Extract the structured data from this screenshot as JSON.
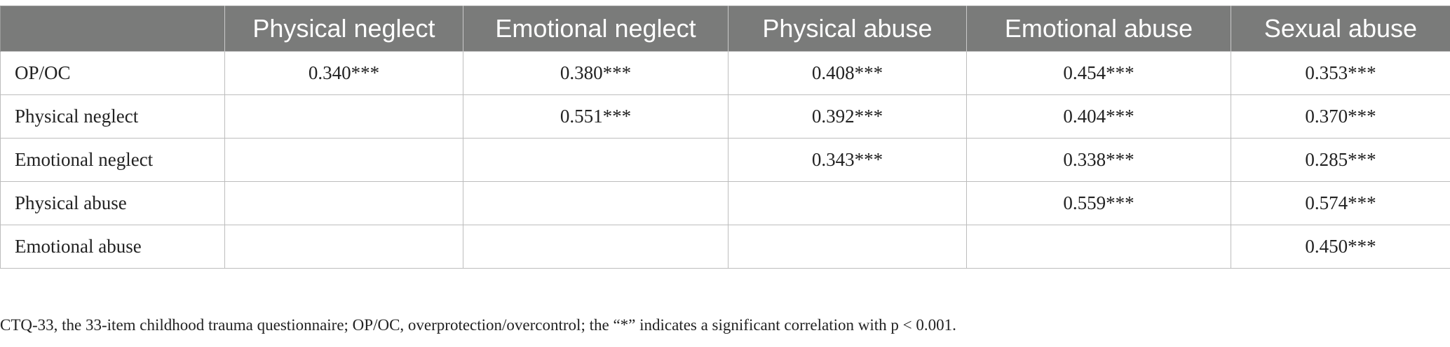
{
  "table": {
    "headers": [
      "",
      "Physical neglect",
      "Emotional neglect",
      "Physical abuse",
      "Emotional abuse",
      "Sexual abuse"
    ],
    "rows": [
      {
        "label": "OP/OC",
        "cells": [
          "0.340***",
          "0.380***",
          "0.408***",
          "0.454***",
          "0.353***"
        ]
      },
      {
        "label": "Physical neglect",
        "cells": [
          "",
          "0.551***",
          "0.392***",
          "0.404***",
          "0.370***"
        ]
      },
      {
        "label": "Emotional neglect",
        "cells": [
          "",
          "",
          "0.343***",
          "0.338***",
          "0.285***"
        ]
      },
      {
        "label": "Physical abuse",
        "cells": [
          "",
          "",
          "",
          "0.559***",
          "0.574***"
        ]
      },
      {
        "label": "Emotional abuse",
        "cells": [
          "",
          "",
          "",
          "",
          "0.450***"
        ]
      }
    ]
  },
  "footnote": "CTQ-33, the 33-item childhood trauma questionnaire; OP/OC, overprotection/overcontrol; the “*” indicates a significant correlation with p < 0.001."
}
